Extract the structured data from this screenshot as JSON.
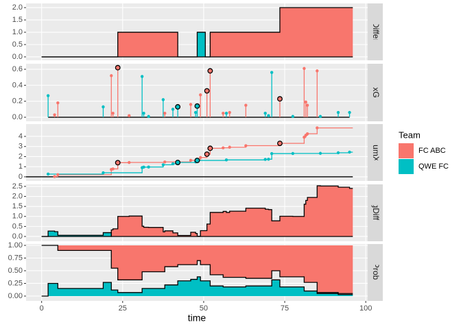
{
  "chart_data": [
    {
      "type": "step-area",
      "facet": "GoalDifference",
      "x": [
        0,
        23.5,
        42,
        48,
        50.5,
        52,
        73.5,
        96
      ],
      "series": [
        {
          "name": "FC ABC",
          "color": "#F8766D",
          "values": [
            0,
            1,
            0,
            0,
            0,
            1,
            2,
            2
          ]
        },
        {
          "name": "QWE FC",
          "color": "#00BFC4",
          "values": [
            0,
            0,
            0,
            1,
            0,
            0,
            0,
            0
          ]
        }
      ],
      "xlim": [
        -4.8,
        100.6
      ],
      "xticks": [
        0,
        25,
        50,
        75,
        100
      ],
      "ylim": [
        -0.14,
        2.17
      ],
      "yticks": [
        {
          "value": 0,
          "label": "0.0"
        },
        {
          "value": 0.5,
          "label": "0.5"
        },
        {
          "value": 1,
          "label": "1.0"
        },
        {
          "value": 1.5,
          "label": "1.5"
        },
        {
          "value": 2,
          "label": "2.0"
        }
      ],
      "grid": true
    },
    {
      "type": "lollipop",
      "facet": "xG",
      "legend_title": "Team",
      "series": [
        {
          "name": "FC ABC",
          "color": "#F8766D",
          "x": [
            4,
            5,
            21.5,
            22,
            23.5,
            27,
            38,
            46,
            49,
            51,
            52,
            56,
            58,
            63,
            73.5,
            81,
            81.5,
            82,
            85
          ],
          "values": [
            0.03,
            0.18,
            0.52,
            0.05,
            0.62,
            0.02,
            0.05,
            0.16,
            0.28,
            0.33,
            0.58,
            0.05,
            0.06,
            0.15,
            0.23,
            0.61,
            0.19,
            0.15,
            0.58
          ],
          "goal": [
            false,
            false,
            false,
            false,
            true,
            false,
            false,
            false,
            false,
            true,
            true,
            false,
            false,
            false,
            true,
            false,
            false,
            false,
            false
          ]
        },
        {
          "name": "QWE FC",
          "color": "#00BFC4",
          "x": [
            2,
            19,
            31,
            31.5,
            33,
            37.5,
            40.5,
            42,
            47.5,
            48,
            57,
            69,
            70,
            71,
            77.5,
            86,
            91.5,
            95
          ],
          "values": [
            0.27,
            0.13,
            0.51,
            0.05,
            0.01,
            0.22,
            0.1,
            0.13,
            0.06,
            0.14,
            0.05,
            0.05,
            0.02,
            0.56,
            0.01,
            0.01,
            0.06,
            0.06
          ],
          "goal": [
            false,
            false,
            false,
            false,
            false,
            false,
            false,
            true,
            false,
            true,
            false,
            false,
            false,
            false,
            false,
            false,
            false,
            false
          ]
        }
      ],
      "xlim": [
        -4.8,
        100.6
      ],
      "xticks": [
        0,
        25,
        50,
        75,
        100
      ],
      "ylim": [
        -0.051,
        0.669
      ],
      "yticks": [
        {
          "value": 0,
          "label": "0.0"
        },
        {
          "value": 0.2,
          "label": "0.2"
        },
        {
          "value": 0.4,
          "label": "0.4"
        },
        {
          "value": 0.6,
          "label": "0.6"
        }
      ],
      "grid": true
    },
    {
      "type": "step-points",
      "facet": "CumXg",
      "xend": 96,
      "series": [
        {
          "name": "FC ABC",
          "color": "#F8766D",
          "x": [
            4,
            5,
            21.5,
            22,
            23.5,
            27,
            38,
            46,
            49,
            51,
            52,
            56,
            58,
            63,
            73.5,
            81,
            81.5,
            82,
            85
          ],
          "values": [
            0.03,
            0.21,
            0.73,
            0.78,
            1.4,
            1.42,
            1.47,
            1.63,
            1.91,
            2.24,
            2.82,
            2.87,
            2.93,
            3.08,
            3.31,
            3.92,
            4.11,
            4.26,
            4.84
          ],
          "goal": [
            false,
            false,
            false,
            false,
            true,
            false,
            false,
            false,
            false,
            true,
            true,
            false,
            false,
            false,
            true,
            false,
            false,
            false,
            false
          ]
        },
        {
          "name": "QWE FC",
          "color": "#00BFC4",
          "x": [
            2,
            19,
            31,
            31.5,
            33,
            37.5,
            40.5,
            42,
            47.5,
            48,
            57,
            69,
            70,
            71,
            77.5,
            86,
            91.5,
            95
          ],
          "values": [
            0.27,
            0.4,
            0.91,
            0.96,
            0.97,
            1.19,
            1.29,
            1.42,
            1.48,
            1.62,
            1.67,
            1.72,
            1.74,
            2.3,
            2.31,
            2.32,
            2.38,
            2.44
          ],
          "goal": [
            false,
            false,
            false,
            false,
            false,
            false,
            false,
            true,
            false,
            true,
            false,
            false,
            false,
            false,
            false,
            false,
            false,
            false
          ]
        }
      ],
      "xlim": [
        -4.8,
        100.6
      ],
      "xticks": [
        0,
        25,
        50,
        75,
        100
      ],
      "ylim": [
        -0.41,
        5.22
      ],
      "yticks": [
        0,
        1,
        2,
        3,
        4
      ],
      "grid": true
    },
    {
      "type": "step-area",
      "facet": "CumXgDifference",
      "x": [
        0,
        2,
        4,
        5,
        19,
        21.5,
        22,
        23.5,
        27,
        31,
        31.5,
        33,
        37.5,
        38,
        40.5,
        42,
        46,
        47.5,
        48,
        49,
        51,
        52,
        56,
        57,
        58,
        63,
        69,
        70,
        71,
        73.5,
        77.5,
        81,
        81.5,
        82,
        85,
        86,
        91.5,
        95,
        96
      ],
      "series": [
        {
          "name": "FC ABC",
          "color": "#F8766D",
          "values": [
            0,
            0,
            0,
            0,
            0,
            0.33,
            0.38,
            1.0,
            1.02,
            0.51,
            0.46,
            0.45,
            0.23,
            0.28,
            0.18,
            0.05,
            0.21,
            0.15,
            0.01,
            0.29,
            0.62,
            1.2,
            1.25,
            1.2,
            1.26,
            1.41,
            1.36,
            1.34,
            0.78,
            1.01,
            1.0,
            1.61,
            1.8,
            1.95,
            2.53,
            2.52,
            2.46,
            2.4,
            2.4
          ]
        },
        {
          "name": "QWE FC",
          "color": "#00BFC4",
          "values": [
            0,
            0.27,
            0.24,
            0.06,
            0.19,
            0,
            0,
            0,
            0,
            0,
            0,
            0,
            0,
            0,
            0,
            0,
            0,
            0,
            0,
            0,
            0,
            0,
            0,
            0,
            0,
            0,
            0,
            0,
            0,
            0,
            0,
            0,
            0,
            0,
            0,
            0,
            0,
            0,
            0
          ]
        }
      ],
      "xlim": [
        -4.8,
        100.6
      ],
      "xticks": [
        0,
        25,
        50,
        75,
        100
      ],
      "ylim": [
        -0.24,
        2.6
      ],
      "yticks": [
        {
          "value": 0,
          "label": "0.0"
        },
        {
          "value": 0.5,
          "label": "0.5"
        },
        {
          "value": 1,
          "label": "1.0"
        },
        {
          "value": 1.5,
          "label": "1.5"
        },
        {
          "value": 2,
          "label": "2.0"
        },
        {
          "value": 2.5,
          "label": "2.5"
        }
      ],
      "grid": true
    },
    {
      "type": "lead-bands",
      "facet": "LeadProbability",
      "xlabel": "time",
      "x": [
        0,
        2,
        5,
        19,
        21.5,
        23.5,
        31,
        38,
        42,
        46,
        48,
        49,
        52,
        56,
        63,
        71,
        73.5,
        81,
        85,
        91.5,
        96
      ],
      "series": [
        {
          "name": "FC ABC",
          "color": "#F8766D",
          "values": [
            1.0,
            1.0,
            0.9,
            0.9,
            0.55,
            0.32,
            0.48,
            0.58,
            0.62,
            0.62,
            0.7,
            0.62,
            0.42,
            0.37,
            0.35,
            0.5,
            0.38,
            0.27,
            0.07,
            0.05,
            0.05
          ]
        },
        {
          "name": "QWE FC",
          "color": "#00BFC4",
          "values": [
            0,
            0.25,
            0.15,
            0.27,
            0.12,
            0.07,
            0.15,
            0.22,
            0.3,
            0.33,
            0.38,
            0.3,
            0.2,
            0.18,
            0.2,
            0.32,
            0.18,
            0.1,
            0.05,
            0.03,
            0.03
          ]
        }
      ],
      "xlim": [
        -4.8,
        100.6
      ],
      "xticks": [
        0,
        25,
        50,
        75,
        100
      ],
      "ylim": [
        -0.095,
        1.027
      ],
      "yticks": [
        {
          "value": 0,
          "label": "0.00"
        },
        {
          "value": 0.25,
          "label": "0.25"
        },
        {
          "value": 0.5,
          "label": "0.50"
        },
        {
          "value": 0.75,
          "label": "0.75"
        },
        {
          "value": 1,
          "label": "1.00"
        }
      ],
      "grid": true
    }
  ]
}
